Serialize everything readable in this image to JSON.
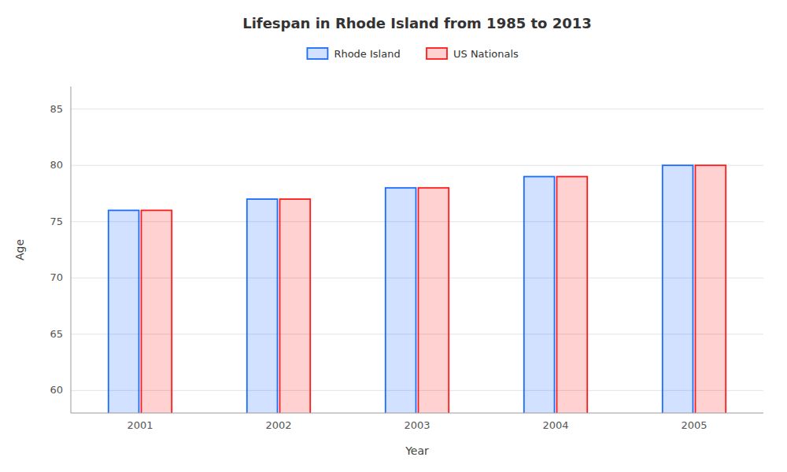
{
  "chart_data": {
    "type": "bar",
    "title": "Lifespan in Rhode Island from 1985 to 2013",
    "xlabel": "Year",
    "ylabel": "Age",
    "categories": [
      "2001",
      "2002",
      "2003",
      "2004",
      "2005"
    ],
    "series": [
      {
        "name": "Rhode Island",
        "color": "#1a6bff",
        "values": [
          76.0,
          77.0,
          78.0,
          79.0,
          80.0
        ]
      },
      {
        "name": "US Nationals",
        "color": "#ff1a1a",
        "values": [
          76.0,
          77.0,
          78.0,
          79.0,
          80.0
        ]
      }
    ],
    "ylim": [
      58,
      87
    ],
    "yticks": [
      60,
      65,
      70,
      75,
      80,
      85
    ],
    "grid": true,
    "legend": "top"
  }
}
